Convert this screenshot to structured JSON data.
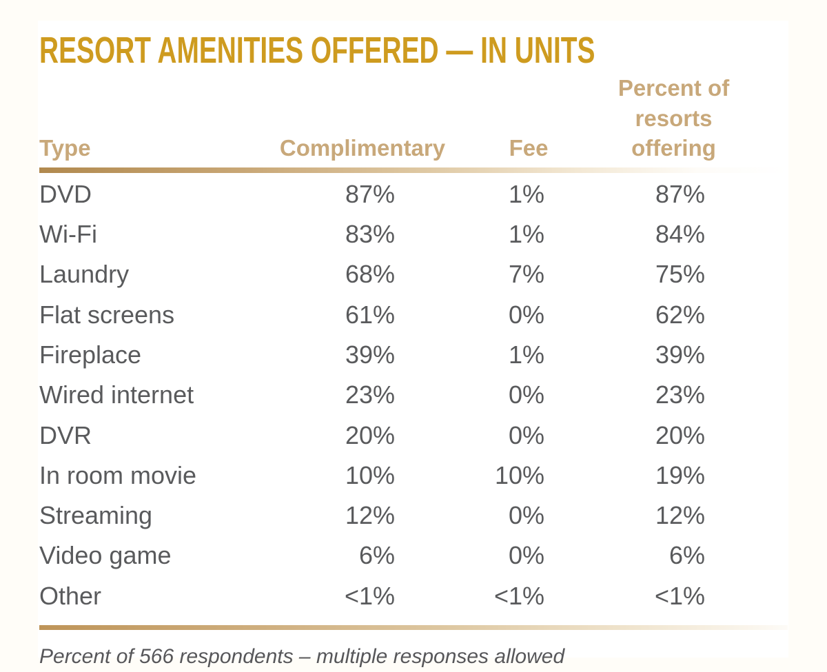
{
  "page": {
    "background_color": "#FFFDF8",
    "card_background_color": "#FFFFFF"
  },
  "colors": {
    "title_gold": "#CE9B1F",
    "header_tan": "#C8A87A",
    "rule_gradient_start": "#B1894E",
    "rule_gradient_end": "#FFFFFF",
    "body_text": "#595A5C",
    "footnote_text": "#57575A"
  },
  "header": {
    "title": "RESORT AMENITIES OFFERED — IN UNITS"
  },
  "table": {
    "columns": [
      {
        "label": "Type"
      },
      {
        "label": "Complimentary"
      },
      {
        "label": "Fee"
      },
      {
        "label_line1": "Percent of resorts",
        "label_line2": "offering"
      }
    ],
    "rows": [
      {
        "type": "DVD",
        "complimentary": "87%",
        "fee": "1%",
        "percent_offering": "87%"
      },
      {
        "type": "Wi-Fi",
        "complimentary": "83%",
        "fee": "1%",
        "percent_offering": "84%"
      },
      {
        "type": "Laundry",
        "complimentary": "68%",
        "fee": "7%",
        "percent_offering": "75%"
      },
      {
        "type": "Flat screens",
        "complimentary": "61%",
        "fee": "0%",
        "percent_offering": "62%"
      },
      {
        "type": "Fireplace",
        "complimentary": "39%",
        "fee": "1%",
        "percent_offering": "39%"
      },
      {
        "type": "Wired internet",
        "complimentary": "23%",
        "fee": "0%",
        "percent_offering": "23%"
      },
      {
        "type": "DVR",
        "complimentary": "20%",
        "fee": "0%",
        "percent_offering": "20%"
      },
      {
        "type": "In room movie",
        "complimentary": "10%",
        "fee": "10%",
        "percent_offering": "19%"
      },
      {
        "type": "Streaming",
        "complimentary": "12%",
        "fee": "0%",
        "percent_offering": "12%"
      },
      {
        "type": "Video game",
        "complimentary": "6%",
        "fee": "0%",
        "percent_offering": "6%"
      },
      {
        "type": "Other",
        "complimentary": "<1%",
        "fee": "<1%",
        "percent_offering": "<1%"
      }
    ]
  },
  "footnote": "Percent of 566 respondents – multiple responses allowed",
  "chart_data": {
    "type": "table",
    "title": "RESORT AMENITIES OFFERED — IN UNITS",
    "categories": [
      "DVD",
      "Wi-Fi",
      "Laundry",
      "Flat screens",
      "Fireplace",
      "Wired internet",
      "DVR",
      "In room movie",
      "Streaming",
      "Video game",
      "Other"
    ],
    "series": [
      {
        "name": "Complimentary",
        "values": [
          "87%",
          "83%",
          "68%",
          "61%",
          "39%",
          "23%",
          "20%",
          "10%",
          "12%",
          "6%",
          "<1%"
        ]
      },
      {
        "name": "Fee",
        "values": [
          "1%",
          "1%",
          "7%",
          "0%",
          "1%",
          "0%",
          "0%",
          "10%",
          "0%",
          "0%",
          "<1%"
        ]
      },
      {
        "name": "Percent of resorts offering",
        "values": [
          "87%",
          "84%",
          "75%",
          "62%",
          "39%",
          "23%",
          "20%",
          "19%",
          "12%",
          "6%",
          "<1%"
        ]
      }
    ],
    "note": "Percent of 566 respondents – multiple responses allowed"
  }
}
